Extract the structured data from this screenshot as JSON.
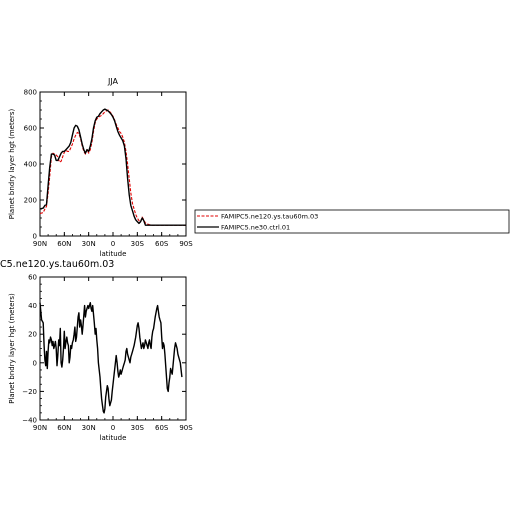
{
  "chart_data": [
    {
      "type": "line",
      "title": "JJA",
      "xlabel": "latitude",
      "ylabel": "Planet bndry layer hgt (meters)",
      "xlim": [
        90,
        -90
      ],
      "ylim": [
        0,
        800
      ],
      "x_ticks": [
        "90N",
        "60N",
        "30N",
        "0",
        "30S",
        "60S",
        "90S"
      ],
      "y_ticks": [
        "0",
        "200",
        "400",
        "600",
        "800"
      ],
      "legend": {
        "placement": "right",
        "entries": [
          "FAMIPC5.ne120.ys.tau60m.03",
          "FAMIPC5.ne30.ctrl.01"
        ]
      },
      "x": [
        90,
        86,
        84,
        82,
        80,
        78,
        76,
        74,
        72,
        70,
        68,
        66,
        64,
        62,
        60,
        58,
        56,
        54,
        52,
        50,
        48,
        46,
        44,
        42,
        40,
        38,
        36,
        34,
        32,
        30,
        28,
        26,
        24,
        22,
        20,
        18,
        16,
        14,
        12,
        10,
        8,
        6,
        4,
        2,
        0,
        -2,
        -4,
        -6,
        -8,
        -10,
        -12,
        -14,
        -16,
        -18,
        -20,
        -22,
        -24,
        -26,
        -28,
        -30,
        -32,
        -34,
        -36,
        -38,
        -40,
        -42,
        -44,
        -46,
        -48,
        -50,
        -52,
        -54,
        -56,
        -58,
        -60,
        -62,
        -64,
        -66,
        -68,
        -70,
        -72,
        -74,
        -76,
        -78,
        -80,
        -82,
        -84,
        -86,
        -88,
        -90
      ],
      "series": [
        {
          "name": "FAMIPC5.ne120.ys.tau60m.03",
          "color": "#e00000",
          "dash": true,
          "values": [
            125,
            130,
            150,
            165,
            240,
            330,
            440,
            460,
            455,
            450,
            440,
            410,
            415,
            440,
            465,
            475,
            470,
            470,
            490,
            510,
            540,
            560,
            575,
            570,
            540,
            500,
            470,
            455,
            480,
            460,
            480,
            520,
            580,
            630,
            650,
            660,
            665,
            670,
            680,
            690,
            695,
            700,
            690,
            680,
            665,
            645,
            620,
            600,
            580,
            570,
            550,
            520,
            470,
            400,
            320,
            240,
            180,
            150,
            120,
            100,
            85,
            80,
            105,
            90,
            72,
            68,
            64,
            62,
            60,
            60,
            60,
            60,
            60,
            60,
            60,
            60,
            60,
            60,
            60,
            60,
            60,
            60,
            60,
            60,
            60,
            60,
            60,
            60,
            60,
            60
          ]
        },
        {
          "name": "FAMIPC5.ne30.ctrl.01",
          "color": "#000000",
          "dash": false,
          "values": [
            150,
            155,
            170,
            175,
            280,
            380,
            455,
            455,
            450,
            420,
            420,
            440,
            460,
            470,
            470,
            480,
            490,
            500,
            520,
            560,
            600,
            615,
            610,
            590,
            550,
            510,
            480,
            460,
            480,
            470,
            500,
            540,
            600,
            640,
            660,
            665,
            680,
            690,
            700,
            705,
            700,
            695,
            685,
            675,
            660,
            640,
            610,
            580,
            560,
            545,
            530,
            500,
            430,
            320,
            230,
            170,
            140,
            110,
            90,
            80,
            70,
            80,
            100,
            85,
            60,
            60,
            60,
            60,
            60,
            60,
            60,
            60,
            60,
            60,
            60,
            60,
            60,
            60,
            60,
            60,
            60,
            60,
            60,
            60,
            60,
            60,
            60,
            60,
            60,
            60
          ]
        }
      ]
    },
    {
      "type": "line",
      "title": "C5.ne120.ys.tau60m.03",
      "xlabel": "latitude",
      "ylabel": "Planet bndry layer hgt (meters)",
      "xlim": [
        90,
        -90
      ],
      "ylim": [
        -40,
        60
      ],
      "x_ticks": [
        "90N",
        "60N",
        "30N",
        "0",
        "30S",
        "60S",
        "90S"
      ],
      "y_ticks": [
        "−40",
        "−20",
        "0",
        "20",
        "40",
        "60"
      ],
      "series": [
        {
          "color": "#000000",
          "values": [
            [
              90,
              42
            ],
            [
              88,
              30
            ],
            [
              86,
              28
            ],
            [
              85,
              12
            ],
            [
              84,
              2
            ],
            [
              83,
              -2
            ],
            [
              82,
              8
            ],
            [
              81,
              -4
            ],
            [
              80,
              8
            ],
            [
              79,
              16
            ],
            [
              78,
              14
            ],
            [
              77,
              18
            ],
            [
              76,
              16
            ],
            [
              75,
              12
            ],
            [
              74,
              15
            ],
            [
              73,
              10
            ],
            [
              72,
              12
            ],
            [
              71,
              15
            ],
            [
              70,
              10
            ],
            [
              69,
              -2
            ],
            [
              68,
              5
            ],
            [
              67,
              16
            ],
            [
              66,
              12
            ],
            [
              65,
              24
            ],
            [
              64,
              0
            ],
            [
              63,
              -3
            ],
            [
              62,
              2
            ],
            [
              61,
              10
            ],
            [
              60,
              22
            ],
            [
              59,
              10
            ],
            [
              58,
              15
            ],
            [
              57,
              18
            ],
            [
              56,
              14
            ],
            [
              55,
              12
            ],
            [
              54,
              0
            ],
            [
              53,
              4
            ],
            [
              52,
              12
            ],
            [
              51,
              10
            ],
            [
              50,
              14
            ],
            [
              49,
              16
            ],
            [
              48,
              20
            ],
            [
              47,
              25
            ],
            [
              46,
              15
            ],
            [
              45,
              18
            ],
            [
              44,
              25
            ],
            [
              43,
              32
            ],
            [
              42,
              35
            ],
            [
              41,
              25
            ],
            [
              40,
              30
            ],
            [
              39,
              26
            ],
            [
              38,
              20
            ],
            [
              37,
              26
            ],
            [
              36,
              33
            ],
            [
              35,
              40
            ],
            [
              34,
              32
            ],
            [
              33,
              36
            ],
            [
              32,
              38
            ],
            [
              31,
              40
            ],
            [
              30,
              38
            ],
            [
              29,
              40
            ],
            [
              28,
              42
            ],
            [
              27,
              38
            ],
            [
              26,
              36
            ],
            [
              25,
              40
            ],
            [
              24,
              34
            ],
            [
              23,
              28
            ],
            [
              22,
              20
            ],
            [
              21,
              24
            ],
            [
              20,
              16
            ],
            [
              19,
              10
            ],
            [
              18,
              0
            ],
            [
              17,
              -5
            ],
            [
              16,
              -10
            ],
            [
              15,
              -18
            ],
            [
              14,
              -25
            ],
            [
              13,
              -30
            ],
            [
              12,
              -34
            ],
            [
              11,
              -35
            ],
            [
              10,
              -32
            ],
            [
              9,
              -24
            ],
            [
              8,
              -20
            ],
            [
              7,
              -16
            ],
            [
              6,
              -18
            ],
            [
              5,
              -25
            ],
            [
              4,
              -30
            ],
            [
              3,
              -28
            ],
            [
              2,
              -26
            ],
            [
              1,
              -20
            ],
            [
              0,
              -15
            ],
            [
              -1,
              -10
            ],
            [
              -2,
              -5
            ],
            [
              -3,
              0
            ],
            [
              -4,
              5
            ],
            [
              -5,
              0
            ],
            [
              -6,
              -6
            ],
            [
              -7,
              -10
            ],
            [
              -8,
              -8
            ],
            [
              -9,
              -5
            ],
            [
              -10,
              -8
            ],
            [
              -11,
              -6
            ],
            [
              -12,
              -4
            ],
            [
              -13,
              -2
            ],
            [
              -14,
              0
            ],
            [
              -15,
              2
            ],
            [
              -16,
              8
            ],
            [
              -17,
              10
            ],
            [
              -18,
              6
            ],
            [
              -19,
              4
            ],
            [
              -20,
              2
            ],
            [
              -21,
              0
            ],
            [
              -22,
              4
            ],
            [
              -23,
              6
            ],
            [
              -24,
              8
            ],
            [
              -25,
              10
            ],
            [
              -26,
              12
            ],
            [
              -27,
              15
            ],
            [
              -28,
              18
            ],
            [
              -29,
              22
            ],
            [
              -30,
              26
            ],
            [
              -31,
              28
            ],
            [
              -32,
              24
            ],
            [
              -33,
              18
            ],
            [
              -34,
              14
            ],
            [
              -35,
              10
            ],
            [
              -36,
              12
            ],
            [
              -37,
              14
            ],
            [
              -38,
              10
            ],
            [
              -39,
              12
            ],
            [
              -40,
              16
            ],
            [
              -41,
              14
            ],
            [
              -42,
              12
            ],
            [
              -43,
              10
            ],
            [
              -44,
              14
            ],
            [
              -45,
              16
            ],
            [
              -46,
              12
            ],
            [
              -47,
              10
            ],
            [
              -48,
              18
            ],
            [
              -49,
              22
            ],
            [
              -50,
              24
            ],
            [
              -51,
              28
            ],
            [
              -52,
              32
            ],
            [
              -53,
              35
            ],
            [
              -54,
              38
            ],
            [
              -55,
              40
            ],
            [
              -56,
              36
            ],
            [
              -57,
              32
            ],
            [
              -58,
              30
            ],
            [
              -59,
              28
            ],
            [
              -60,
              18
            ],
            [
              -61,
              10
            ],
            [
              -62,
              14
            ],
            [
              -63,
              12
            ],
            [
              -64,
              6
            ],
            [
              -65,
              -2
            ],
            [
              -66,
              -10
            ],
            [
              -67,
              -18
            ],
            [
              -68,
              -20
            ],
            [
              -69,
              -14
            ],
            [
              -70,
              -10
            ],
            [
              -71,
              -4
            ],
            [
              -72,
              -6
            ],
            [
              -73,
              -8
            ],
            [
              -74,
              -2
            ],
            [
              -75,
              4
            ],
            [
              -76,
              10
            ],
            [
              -77,
              14
            ],
            [
              -78,
              12
            ],
            [
              -79,
              10
            ],
            [
              -80,
              6
            ],
            [
              -81,
              4
            ],
            [
              -82,
              2
            ],
            [
              -83,
              0
            ],
            [
              -84,
              -5
            ],
            [
              -85,
              -10
            ]
          ]
        }
      ]
    }
  ]
}
